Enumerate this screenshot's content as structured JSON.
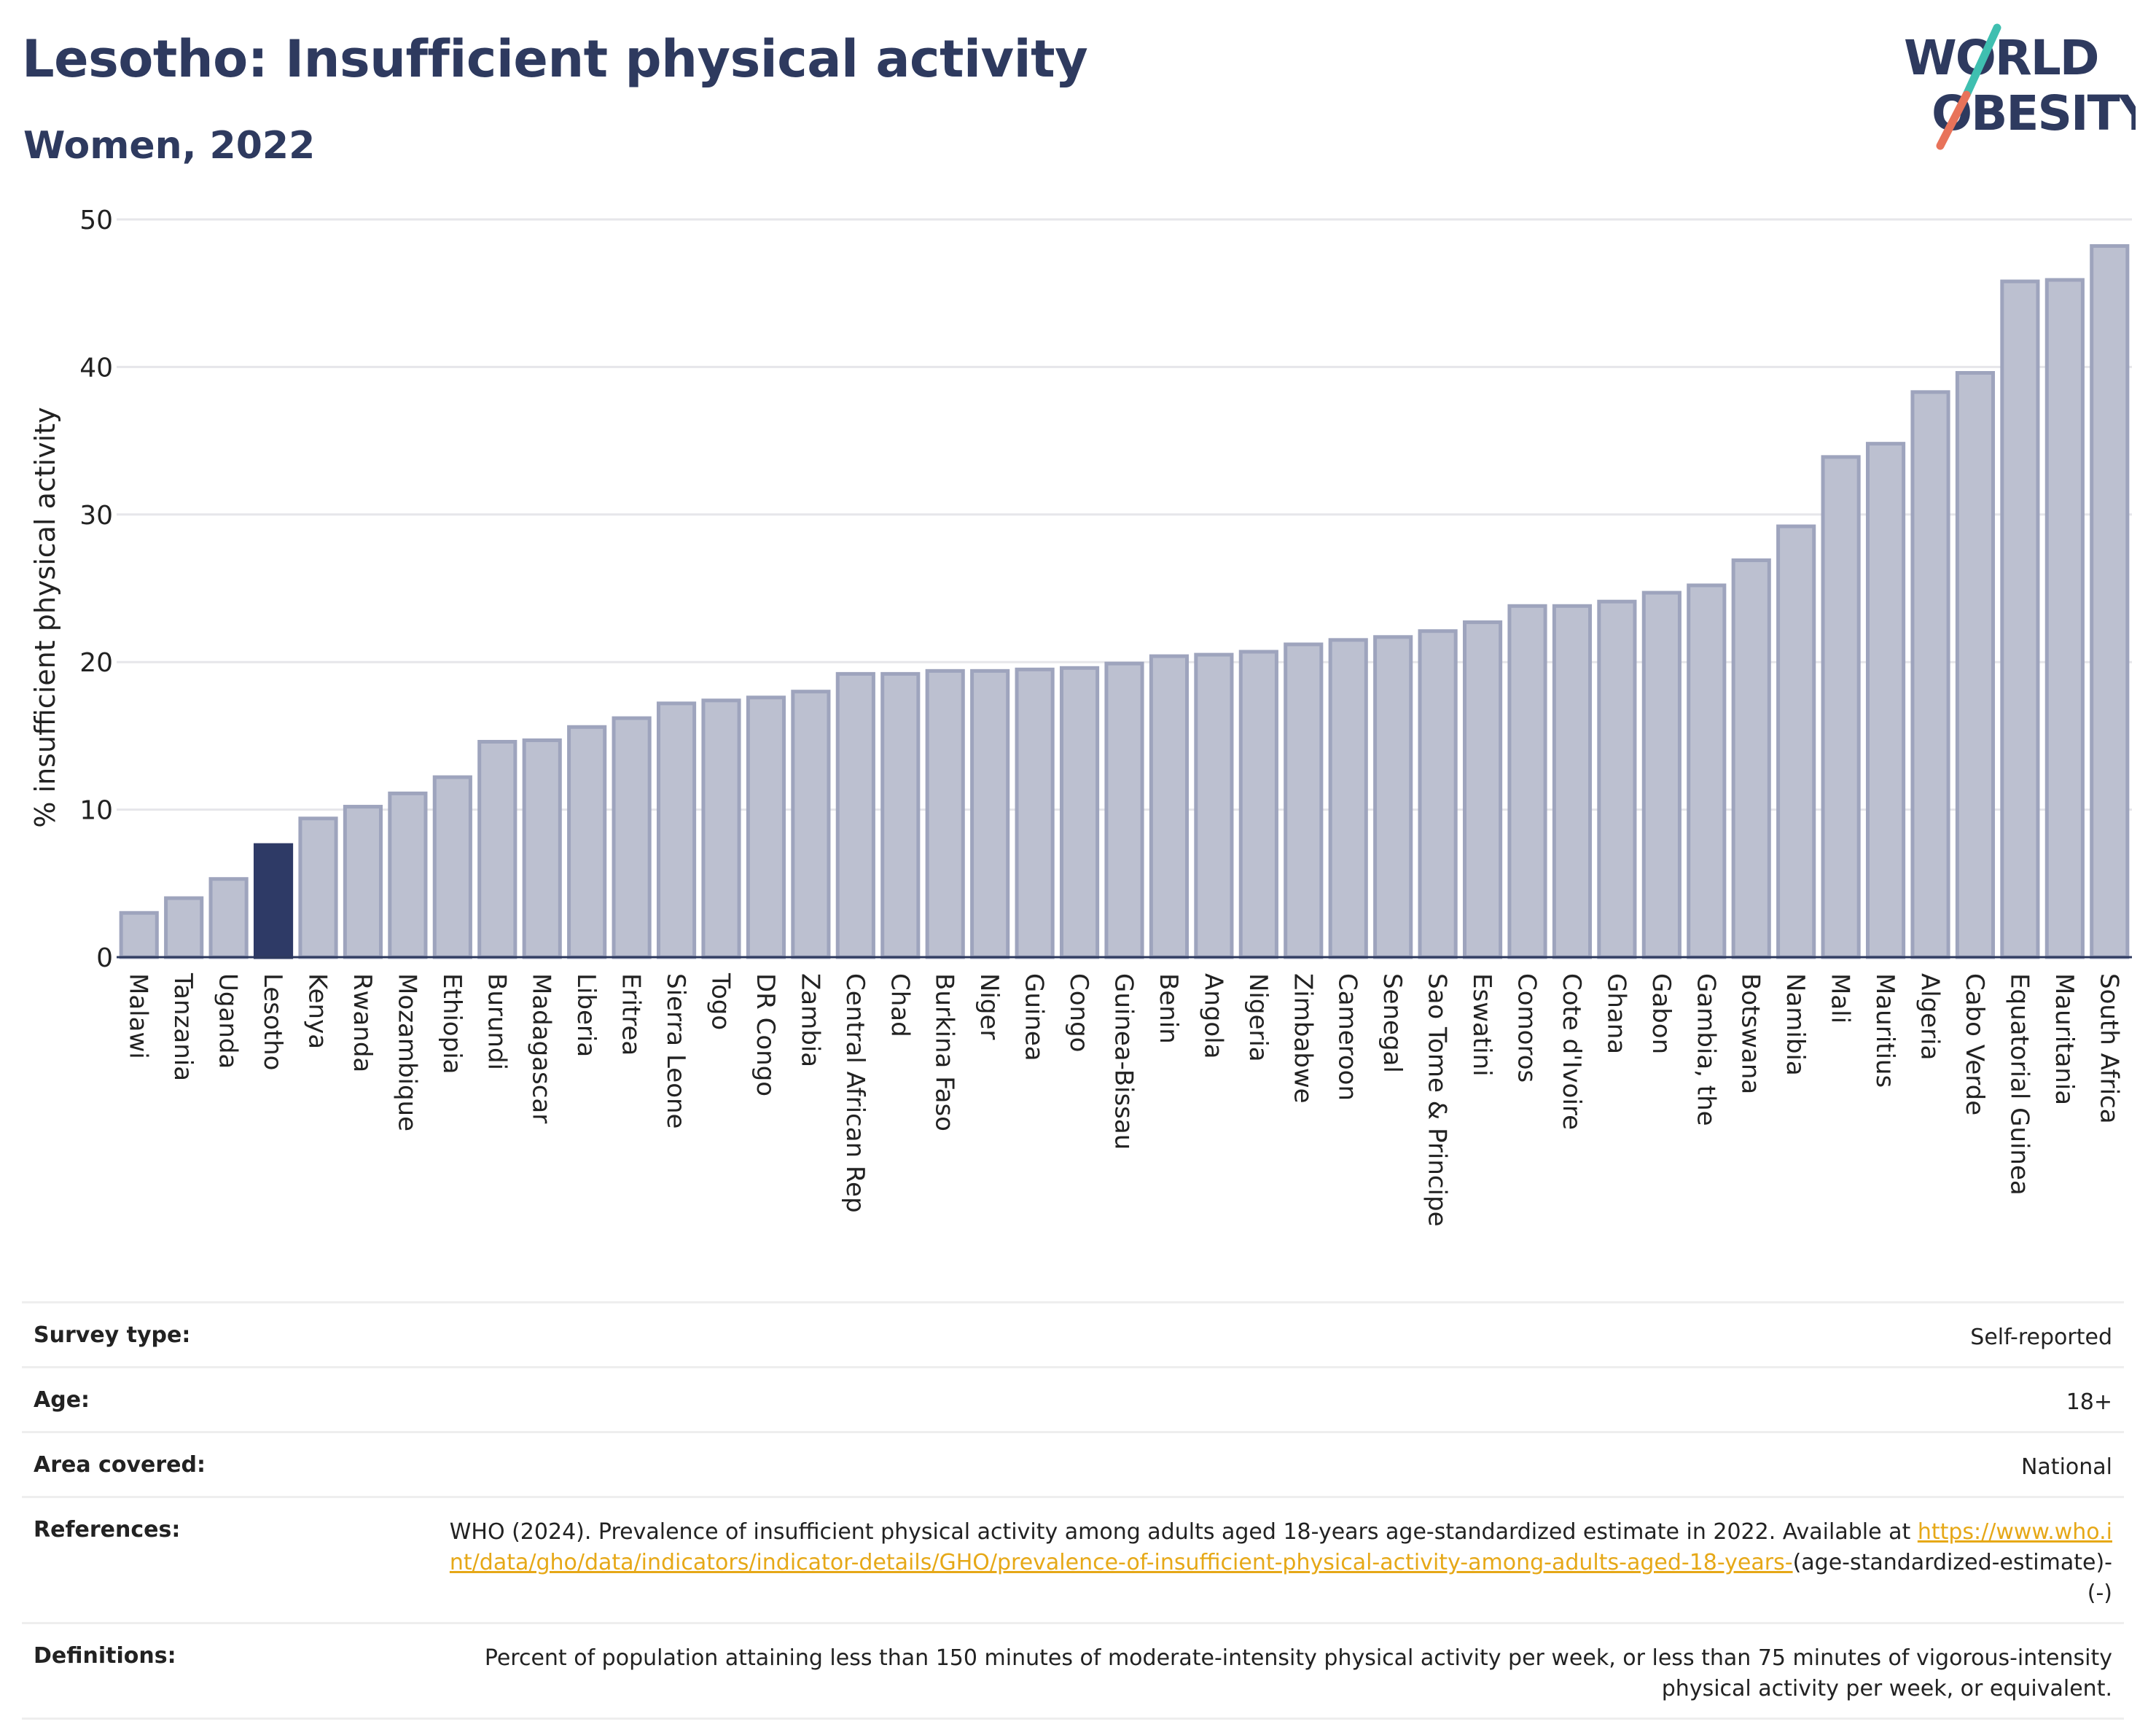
{
  "header": {
    "title": "Lesotho: Insufficient physical activity",
    "subtitle": "Women, 2022"
  },
  "logo": {
    "line1": "WORLD",
    "line2": "OBESITY",
    "accent_colors": [
      "#3fbfb0",
      "#e8735a"
    ]
  },
  "colors": {
    "highlight": "#2e3a66",
    "bar_fill": "#bcc0d0",
    "bar_stroke": "#9ea4bd",
    "title": "#2e3a5f",
    "link": "#e6a817"
  },
  "chart_data": {
    "type": "bar",
    "title": "Lesotho: Insufficient physical activity",
    "subtitle": "Women, 2022",
    "xlabel": "",
    "ylabel": "% insufficient physical activity",
    "ylim": [
      0,
      50
    ],
    "yticks": [
      0,
      10,
      20,
      30,
      40,
      50
    ],
    "grid": true,
    "highlight": "Lesotho",
    "categories": [
      "Malawi",
      "Tanzania",
      "Uganda",
      "Lesotho",
      "Kenya",
      "Rwanda",
      "Mozambique",
      "Ethiopia",
      "Burundi",
      "Madagascar",
      "Liberia",
      "Eritrea",
      "Sierra Leone",
      "Togo",
      "DR Congo",
      "Zambia",
      "Central African Rep",
      "Chad",
      "Burkina Faso",
      "Niger",
      "Guinea",
      "Congo",
      "Guinea-Bissau",
      "Benin",
      "Angola",
      "Nigeria",
      "Zimbabwe",
      "Cameroon",
      "Senegal",
      "Sao Tome & Principe",
      "Eswatini",
      "Comoros",
      "Cote d'Ivoire",
      "Ghana",
      "Gabon",
      "Gambia, the",
      "Botswana",
      "Namibia",
      "Mali",
      "Mauritius",
      "Algeria",
      "Cabo Verde",
      "Equatorial Guinea",
      "Mauritania",
      "South Africa"
    ],
    "values": [
      3.0,
      4.0,
      5.3,
      7.6,
      9.4,
      10.2,
      11.1,
      12.2,
      14.6,
      14.7,
      15.6,
      16.2,
      17.2,
      17.4,
      17.6,
      18.0,
      19.2,
      19.2,
      19.4,
      19.4,
      19.5,
      19.6,
      19.9,
      20.4,
      20.5,
      20.7,
      21.2,
      21.5,
      21.7,
      22.1,
      22.7,
      23.8,
      23.8,
      24.1,
      24.7,
      25.2,
      26.9,
      29.2,
      33.9,
      34.8,
      38.3,
      39.6,
      45.8,
      45.9,
      48.2
    ]
  },
  "info": {
    "survey_type": {
      "label": "Survey type:",
      "value": "Self-reported"
    },
    "age": {
      "label": "Age:",
      "value": "18+"
    },
    "area": {
      "label": "Area covered:",
      "value": "National"
    },
    "references": {
      "label": "References:",
      "text": "WHO (2024). Prevalence of insufficient physical activity among adults aged 18-years age-standardized estimate in 2022. Available at",
      "link": "https://www.who.int/data/gho/data/indicators/indicator-details/GHO/prevalence-of-insufficient-physical-activity-among-adults-aged-18-years-",
      "suffix": "(age-standardized-estimate)-(-)"
    },
    "definitions": {
      "label": "Definitions:",
      "value": "Percent of population attaining less than 150 minutes of moderate-intensity physical activity per week, or less than 75 minutes of vigorous-intensity physical activity per week, or equivalent."
    }
  }
}
